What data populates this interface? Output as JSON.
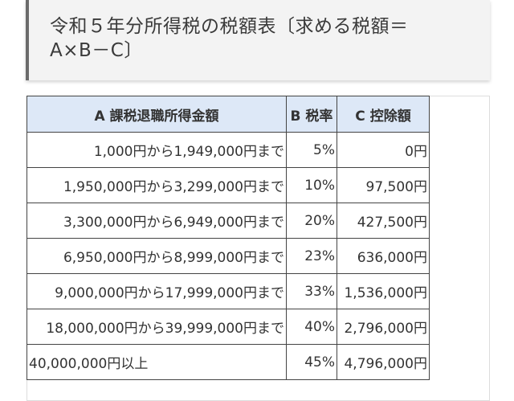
{
  "heading": {
    "title": "令和５年分所得税の税額表〔求める税額＝\nA×B－C〕"
  },
  "table": {
    "headers": [
      "A 課税退職所得金額",
      "B 税率",
      "C 控除額"
    ],
    "rows": [
      {
        "amount": "1,000円から1,949,000円まで",
        "rate": "5%",
        "deduction": "0円"
      },
      {
        "amount": "1,950,000円から3,299,000円まで",
        "rate": "10%",
        "deduction": "97,500円"
      },
      {
        "amount": "3,300,000円から6,949,000円まで",
        "rate": "20%",
        "deduction": "427,500円"
      },
      {
        "amount": "6,950,000円から8,999,000円まで",
        "rate": "23%",
        "deduction": "636,000円"
      },
      {
        "amount": "9,000,000円から17,999,000円まで",
        "rate": "33%",
        "deduction": "1,536,000円"
      },
      {
        "amount": "18,000,000円から39,999,000円まで",
        "rate": "40%",
        "deduction": "2,796,000円"
      },
      {
        "amount": "40,000,000円以上",
        "rate": "45%",
        "deduction": "4,796,000円"
      }
    ]
  },
  "colors": {
    "header_bg": "#dde8f7",
    "heading_bg": "#f3f3f3",
    "heading_border": "#6b6b6b"
  }
}
